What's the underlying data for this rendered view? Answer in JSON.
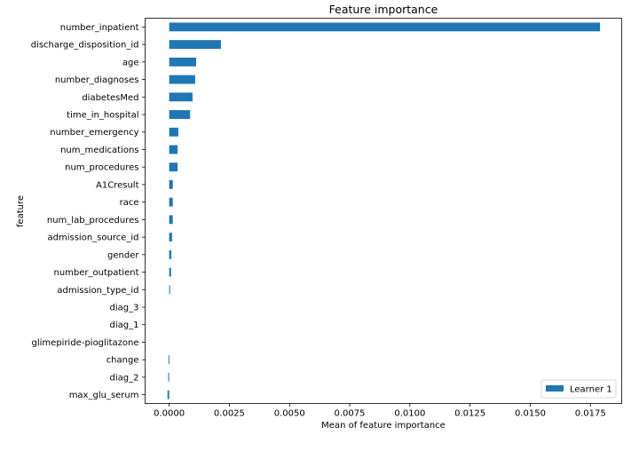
{
  "chart_data": {
    "type": "bar",
    "orientation": "horizontal",
    "title": "Feature importance",
    "xlabel": "Mean of feature importance",
    "ylabel": "feature",
    "xlim": [
      -0.001,
      0.0188
    ],
    "xticks": [
      0.0,
      0.0025,
      0.005,
      0.0075,
      0.01,
      0.0125,
      0.015,
      0.0175
    ],
    "xtick_labels": [
      "0.0000",
      "0.0025",
      "0.0050",
      "0.0075",
      "0.0100",
      "0.0125",
      "0.0150",
      "0.0175"
    ],
    "grid": false,
    "legend_position": "bottom-right",
    "categories": [
      "number_inpatient",
      "discharge_disposition_id",
      "age",
      "number_diagnoses",
      "diabetesMed",
      "time_in_hospital",
      "number_emergency",
      "num_medications",
      "num_procedures",
      "A1Cresult",
      "race",
      "num_lab_procedures",
      "admission_source_id",
      "gender",
      "number_outpatient",
      "admission_type_id",
      "diag_3",
      "diag_1",
      "glimepiride-pioglitazone",
      "change",
      "diag_2",
      "max_glu_serum"
    ],
    "series": [
      {
        "name": "Learner 1",
        "color": "#1f77b4",
        "values": [
          0.0179,
          0.00215,
          0.00112,
          0.00108,
          0.00097,
          0.00087,
          0.00038,
          0.00035,
          0.00035,
          0.00015,
          0.00015,
          0.00015,
          0.00012,
          9e-05,
          8e-05,
          3e-05,
          0.0,
          0.0,
          0.0,
          -3e-05,
          -4e-05,
          -7e-05
        ]
      }
    ]
  }
}
